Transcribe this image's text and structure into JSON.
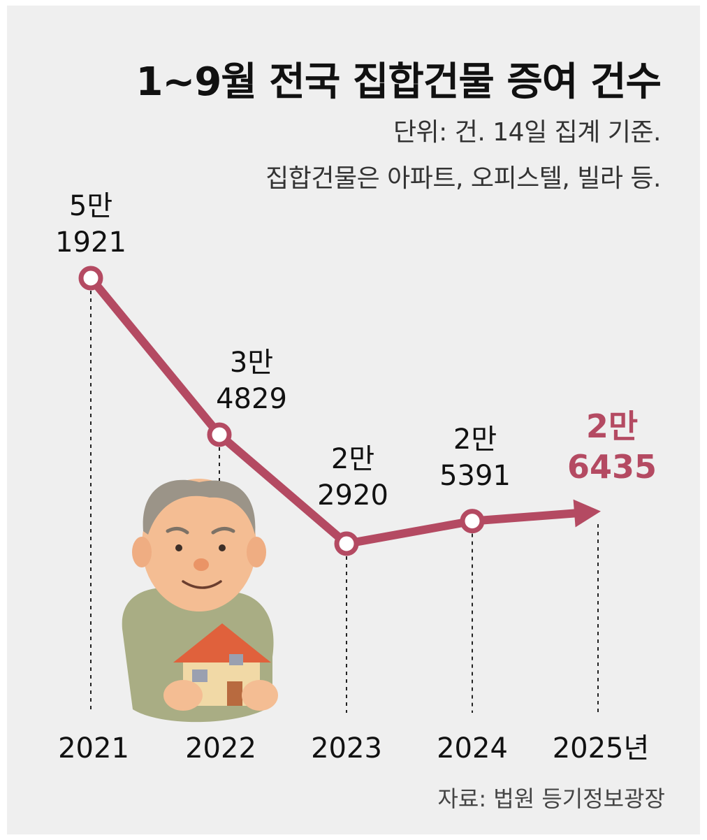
{
  "chart_data": {
    "type": "line",
    "title": "1~9월 전국 집합건물 증여 건수",
    "subtitle": [
      "단위: 건. 14일 집계 기준.",
      "집합건물은 아파트, 오피스텔, 빌라 등."
    ],
    "x": [
      "2021",
      "2022",
      "2023",
      "2024",
      "2025년"
    ],
    "values": [
      51921,
      34829,
      22920,
      25391,
      26435
    ],
    "value_labels": [
      [
        "5만",
        "1921"
      ],
      [
        "3만",
        "4829"
      ],
      [
        "2만",
        "2920"
      ],
      [
        "2만",
        "5391"
      ],
      [
        "2만",
        "6435"
      ]
    ],
    "highlight_index": 4,
    "ylim": [
      20000,
      55000
    ],
    "source": "자료: 법원 등기정보광장"
  },
  "colors": {
    "line": "#b44a62",
    "highlight_text": "#b44a62",
    "background": "#efefef"
  },
  "illustration": "elderly-man-holding-house-icon"
}
